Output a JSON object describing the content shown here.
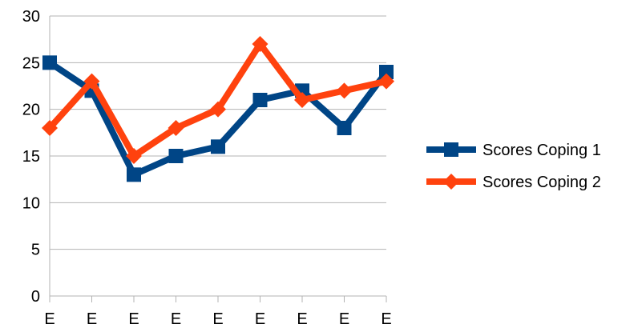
{
  "chart_data": {
    "type": "line",
    "title": "",
    "xlabel": "",
    "ylabel": "",
    "categories": [
      "E",
      "E",
      "E",
      "E",
      "E",
      "E",
      "E",
      "E",
      "E"
    ],
    "ylim": [
      0,
      30
    ],
    "yticks": [
      0,
      5,
      10,
      15,
      20,
      25,
      30
    ],
    "grid": true,
    "legend_position": "right",
    "series": [
      {
        "name": "Scores Coping 1",
        "values": [
          25,
          22,
          13,
          15,
          16,
          21,
          22,
          18,
          24
        ],
        "color": "#004586",
        "marker": "square"
      },
      {
        "name": "Scores Coping 2",
        "values": [
          18,
          23,
          15,
          18,
          20,
          27,
          21,
          22,
          23
        ],
        "color": "#ff420e",
        "marker": "diamond"
      }
    ]
  }
}
